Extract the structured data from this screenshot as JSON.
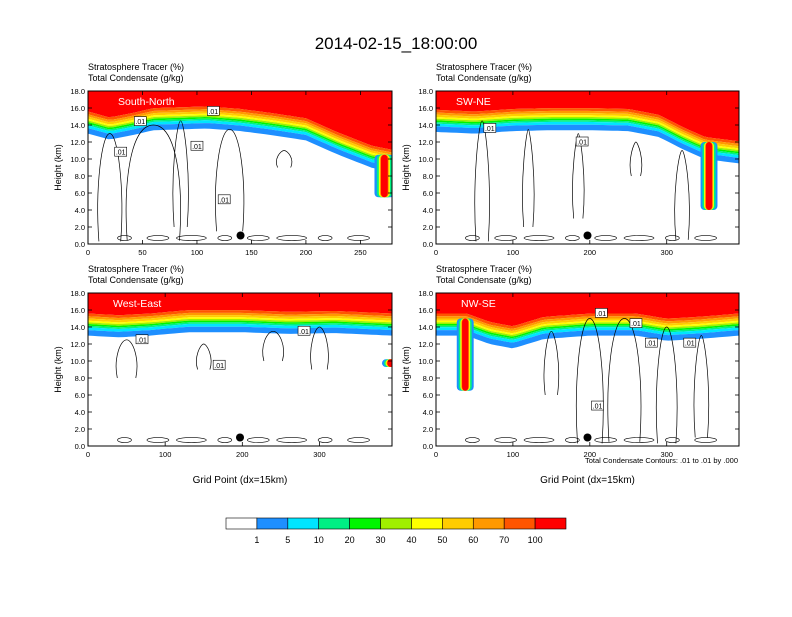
{
  "figure": {
    "title": "2014-02-15_18:00:00",
    "footnote": "Total Condensate Contours: .01 to .01 by .000",
    "x_axis_label": "Grid Point (dx=15km)",
    "y_axis_label": "Height (km)"
  },
  "colorbar": {
    "colors": [
      "#ffffff",
      "#1e8fff",
      "#00e5ff",
      "#00f084",
      "#00f500",
      "#a0f000",
      "#ffff00",
      "#ffcc00",
      "#ff9900",
      "#ff5500",
      "#ff0000"
    ],
    "tick_labels": [
      "1",
      "5",
      "10",
      "20",
      "30",
      "40",
      "50",
      "60",
      "70",
      "100"
    ]
  },
  "chart_data": [
    {
      "type": "heatmap",
      "title": "South-North",
      "subtitle_lines": [
        "Stratosphere Tracer   (%)",
        "Total Condensate   (g/kg)"
      ],
      "ylabel": "Height (km)",
      "xlabel": "",
      "xlim": [
        0,
        279
      ],
      "ylim": [
        0,
        18
      ],
      "x_ticks": [
        "0",
        "50",
        "100",
        "150",
        "200",
        "250"
      ],
      "y_ticks": [
        "0.0",
        "2.0",
        "4.0",
        "6.0",
        "8.0",
        "10.0",
        "12.0",
        "14.0",
        "16.0",
        "18.0"
      ],
      "tracer_top_km": 16.3,
      "tropopause_base_km": [
        [
          0,
          15.0
        ],
        [
          20,
          14.3
        ],
        [
          40,
          14.8
        ],
        [
          60,
          15.4
        ],
        [
          85,
          15.5
        ],
        [
          110,
          15.6
        ],
        [
          140,
          15.3
        ],
        [
          170,
          14.8
        ],
        [
          200,
          14.2
        ],
        [
          230,
          12.5
        ],
        [
          260,
          11.0
        ],
        [
          279,
          10.5
        ]
      ],
      "deep_intrusions": [
        {
          "x": 272,
          "top_km": 10.5,
          "bottom_km": 5.5
        }
      ],
      "contour_labels": [
        ".01",
        ".01",
        ".01",
        ".01",
        ".01"
      ],
      "marker": {
        "x": 140,
        "y_km": 1.0
      }
    },
    {
      "type": "heatmap",
      "title": "SW-NE",
      "subtitle_lines": [
        "Stratosphere Tracer   (%)",
        "Total Condensate   (g/kg)"
      ],
      "ylabel": "Height (km)",
      "xlabel": "",
      "xlim": [
        0,
        394
      ],
      "ylim": [
        0,
        18
      ],
      "x_ticks": [
        "0",
        "100",
        "200",
        "300"
      ],
      "y_ticks": [
        "0.0",
        "2.0",
        "4.0",
        "6.0",
        "8.0",
        "10.0",
        "12.0",
        "14.0",
        "16.0",
        "18.0"
      ],
      "tracer_top_km": 16.3,
      "tropopause_base_km": [
        [
          0,
          15.2
        ],
        [
          50,
          15.0
        ],
        [
          100,
          15.3
        ],
        [
          150,
          15.4
        ],
        [
          200,
          15.4
        ],
        [
          250,
          15.3
        ],
        [
          290,
          14.6
        ],
        [
          320,
          13.2
        ],
        [
          350,
          12.0
        ],
        [
          394,
          11.5
        ]
      ],
      "deep_intrusions": [
        {
          "x": 355,
          "top_km": 12.0,
          "bottom_km": 4.0
        }
      ],
      "contour_labels": [
        ".01",
        ".01"
      ],
      "marker": {
        "x": 197,
        "y_km": 1.0
      }
    },
    {
      "type": "heatmap",
      "title": "West-East",
      "subtitle_lines": [
        "Stratosphere Tracer   (%)",
        "Total Condensate   (g/kg)"
      ],
      "ylabel": "Height (km)",
      "xlabel": "Grid Point (dx=15km)",
      "xlim": [
        0,
        394
      ],
      "ylim": [
        0,
        18
      ],
      "x_ticks": [
        "0",
        "100",
        "200",
        "300"
      ],
      "y_ticks": [
        "0.0",
        "2.0",
        "4.0",
        "6.0",
        "8.0",
        "10.0",
        "12.0",
        "14.0",
        "16.0",
        "18.0"
      ],
      "tracer_top_km": 16.3,
      "tropopause_base_km": [
        [
          0,
          15.0
        ],
        [
          40,
          14.8
        ],
        [
          80,
          15.0
        ],
        [
          130,
          15.4
        ],
        [
          200,
          15.4
        ],
        [
          260,
          15.2
        ],
        [
          320,
          15.3
        ],
        [
          394,
          15.0
        ]
      ],
      "deep_intrusions": [
        {
          "x": 392,
          "top_km": 10.2,
          "bottom_km": 9.3
        }
      ],
      "contour_labels": [
        ".01",
        ".01",
        ".01"
      ],
      "marker": {
        "x": 197,
        "y_km": 1.0
      }
    },
    {
      "type": "heatmap",
      "title": "NW-SE",
      "subtitle_lines": [
        "Stratosphere Tracer   (%)",
        "Total Condensate   (g/kg)"
      ],
      "ylabel": "Height (km)",
      "xlabel": "Grid Point (dx=15km)",
      "xlim": [
        0,
        394
      ],
      "ylim": [
        0,
        18
      ],
      "x_ticks": [
        "0",
        "100",
        "200",
        "300"
      ],
      "y_ticks": [
        "0.0",
        "2.0",
        "4.0",
        "6.0",
        "8.0",
        "10.0",
        "12.0",
        "14.0",
        "16.0",
        "18.0"
      ],
      "tracer_top_km": 16.3,
      "tropopause_base_km": [
        [
          0,
          15.0
        ],
        [
          40,
          15.0
        ],
        [
          70,
          14.0
        ],
        [
          100,
          13.5
        ],
        [
          140,
          14.6
        ],
        [
          200,
          15.0
        ],
        [
          260,
          15.0
        ],
        [
          300,
          14.4
        ],
        [
          340,
          14.6
        ],
        [
          394,
          15.0
        ]
      ],
      "deep_intrusions": [
        {
          "x": 38,
          "top_km": 15.0,
          "bottom_km": 6.5
        }
      ],
      "contour_labels": [
        ".01",
        ".01",
        ".01",
        ".01",
        ".01"
      ],
      "marker": {
        "x": 197,
        "y_km": 1.0
      }
    }
  ]
}
